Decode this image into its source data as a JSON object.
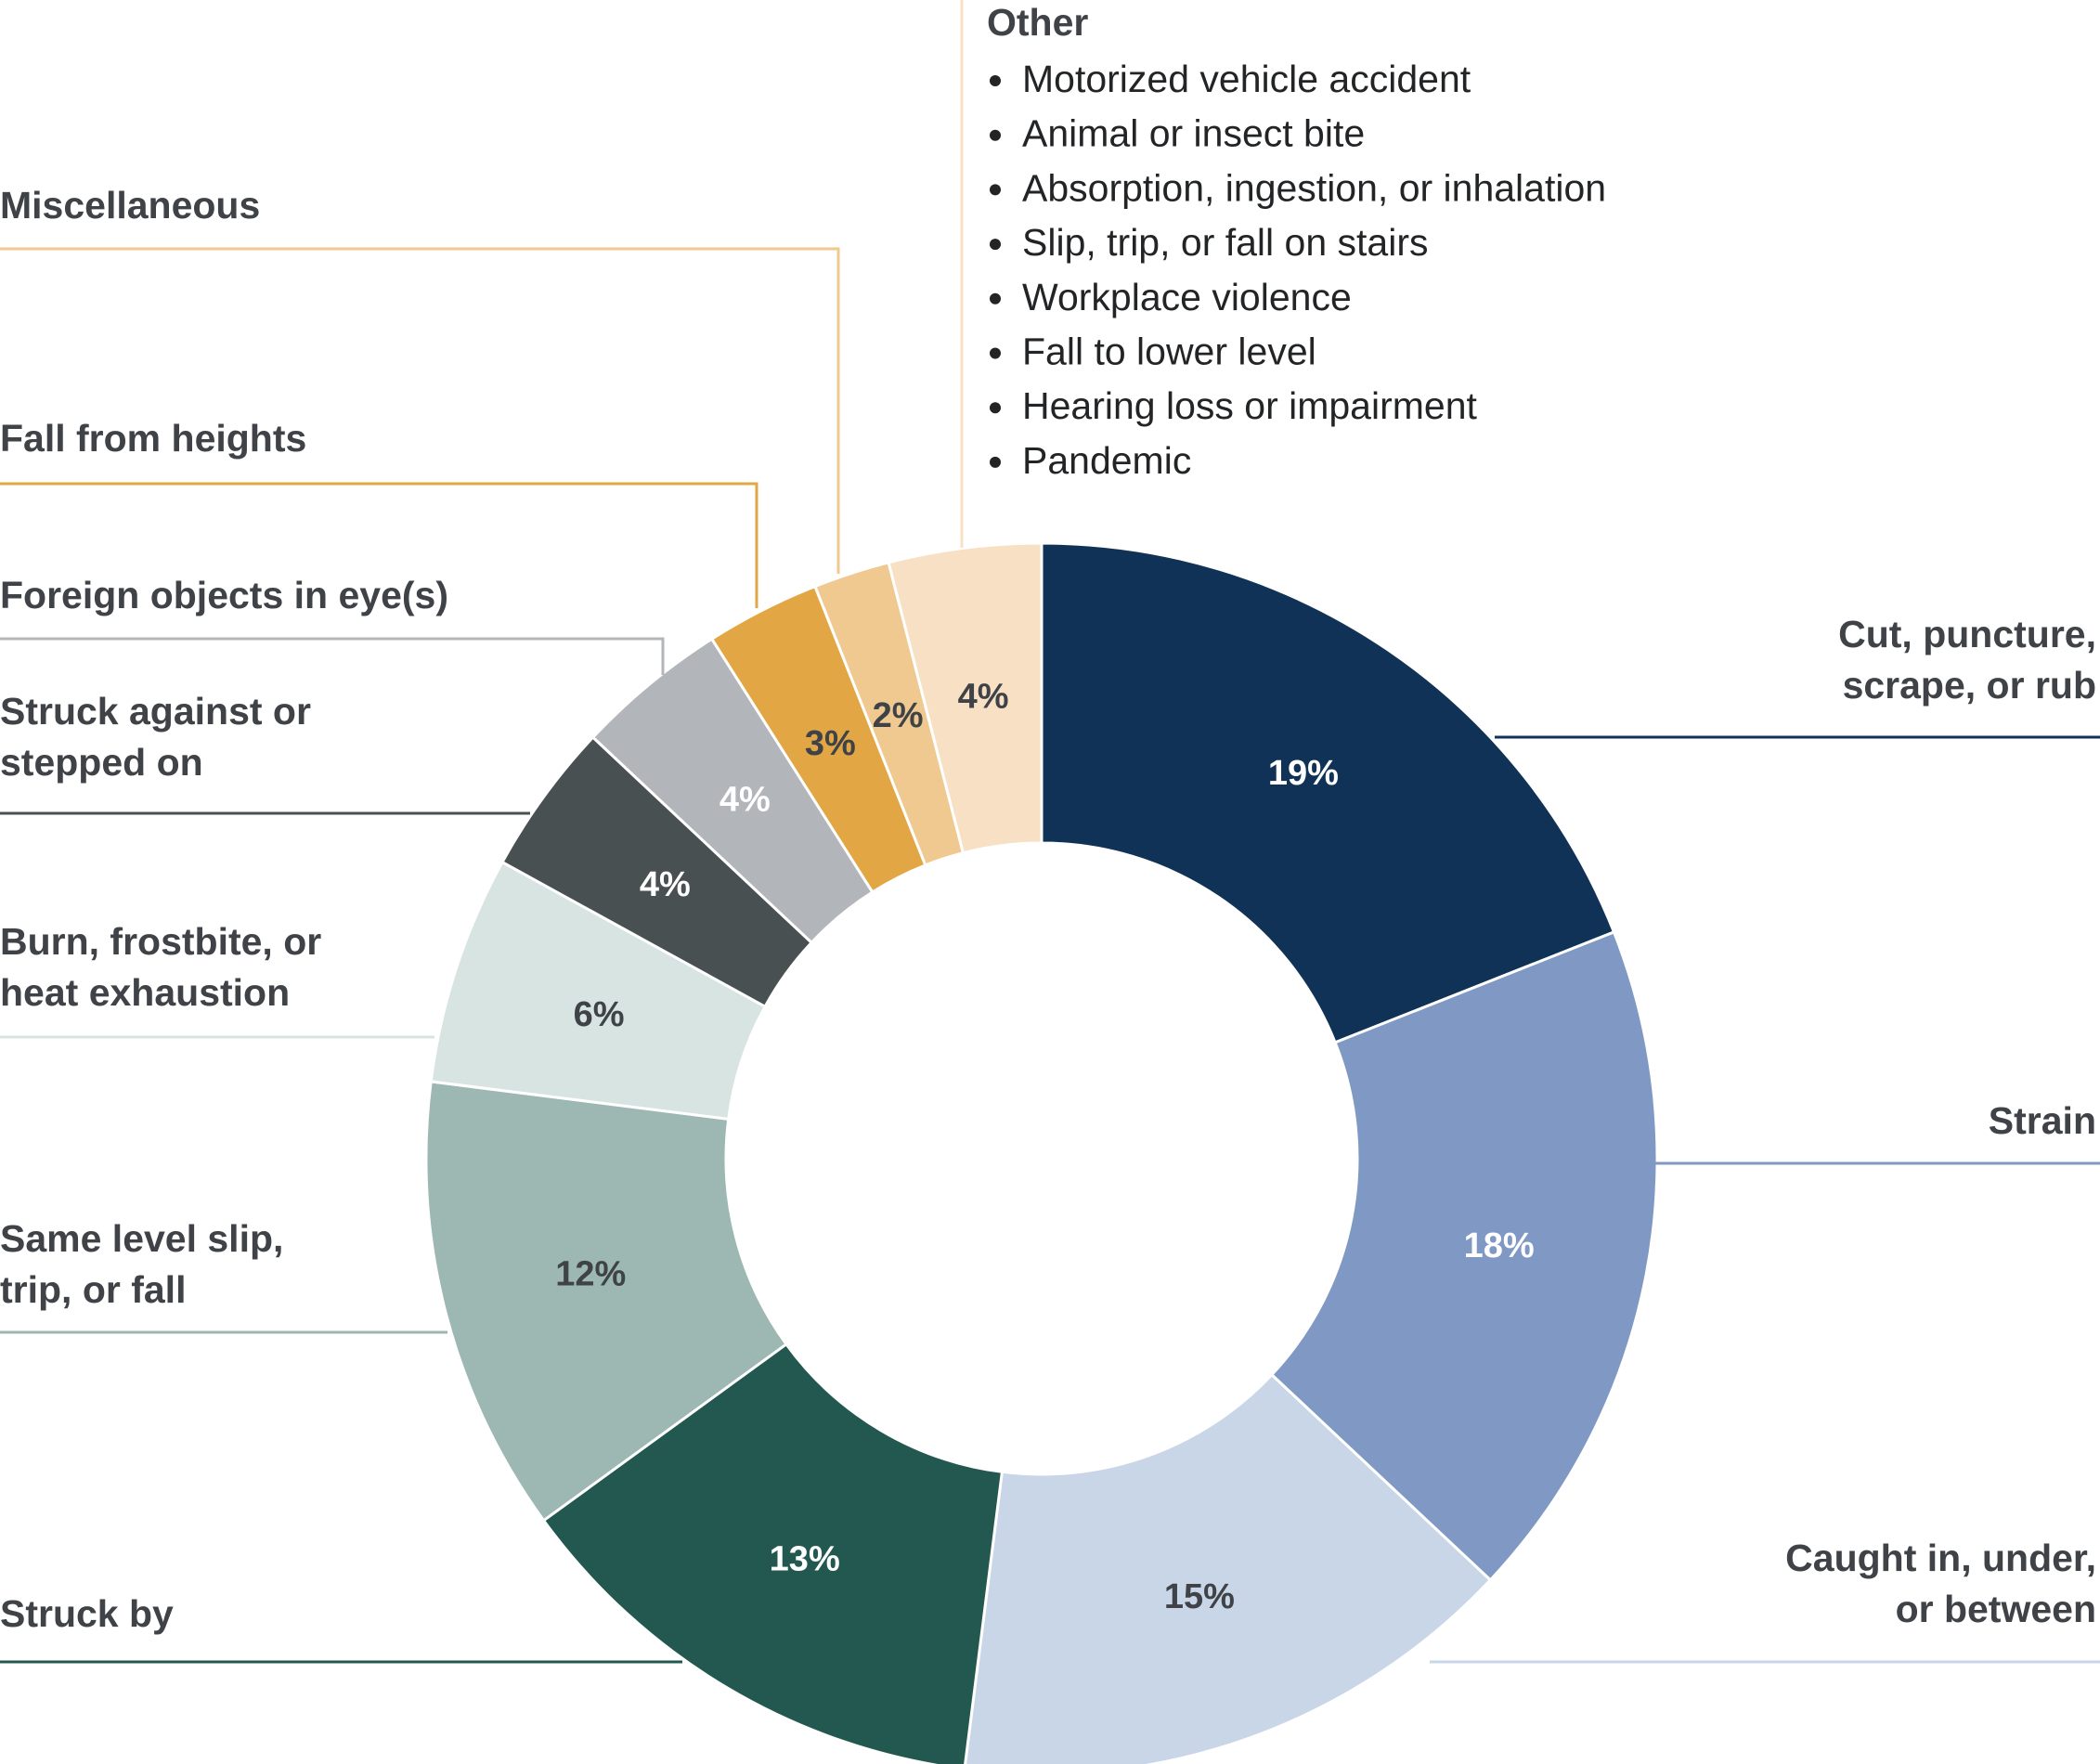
{
  "chart_data": {
    "type": "pie",
    "variant": "donut",
    "title": "",
    "legend": "none",
    "slices": [
      {
        "label": [
          "Cut, puncture,",
          "scrape, or rub"
        ],
        "value": 19,
        "display": "19%",
        "color": "#0f3256",
        "text_color": "#ffffff"
      },
      {
        "label": [
          "Strain"
        ],
        "value": 18,
        "display": "18%",
        "color": "#7f99c4",
        "text_color": "#ffffff"
      },
      {
        "label": [
          "Caught in, under,",
          "or between"
        ],
        "value": 15,
        "display": "15%",
        "color": "#c9d6e7",
        "text_color": "#3f4347"
      },
      {
        "label": [
          "Struck by"
        ],
        "value": 13,
        "display": "13%",
        "color": "#22584f",
        "text_color": "#ffffff"
      },
      {
        "label": [
          "Same level slip,",
          "trip, or fall"
        ],
        "value": 12,
        "display": "12%",
        "color": "#9db8b2",
        "text_color": "#3f4347"
      },
      {
        "label": [
          "Burn, frostbite, or",
          "heat exhaustion"
        ],
        "value": 6,
        "display": "6%",
        "color": "#d8e4e1",
        "text_color": "#3f4347"
      },
      {
        "label": [
          "Struck against or",
          "stepped on"
        ],
        "value": 4,
        "display": "4%",
        "color": "#485052",
        "text_color": "#ffffff"
      },
      {
        "label": [
          "Foreign objects in eye(s)"
        ],
        "value": 4,
        "display": "4%",
        "color": "#b2b5b9",
        "text_color": "#ffffff"
      },
      {
        "label": [
          "Fall from heights"
        ],
        "value": 3,
        "display": "3%",
        "color": "#e2a744",
        "text_color": "#3f4347"
      },
      {
        "label": [
          "Miscellaneous"
        ],
        "value": 2,
        "display": "2%",
        "color": "#efc98f",
        "text_color": "#3f4347"
      },
      {
        "label": [
          "Other"
        ],
        "value": 4,
        "display": "4%",
        "color": "#f8e0c4",
        "text_color": "#3f4347"
      }
    ],
    "other_breakdown": {
      "title": "Other",
      "items": [
        "Motorized vehicle accident",
        "Animal or insect bite",
        "Absorption, ingestion, or inhalation",
        "Slip, trip, or fall on stairs",
        "Workplace violence",
        "Fall to lower level",
        "Hearing loss or impairment",
        "Pandemic"
      ]
    }
  }
}
